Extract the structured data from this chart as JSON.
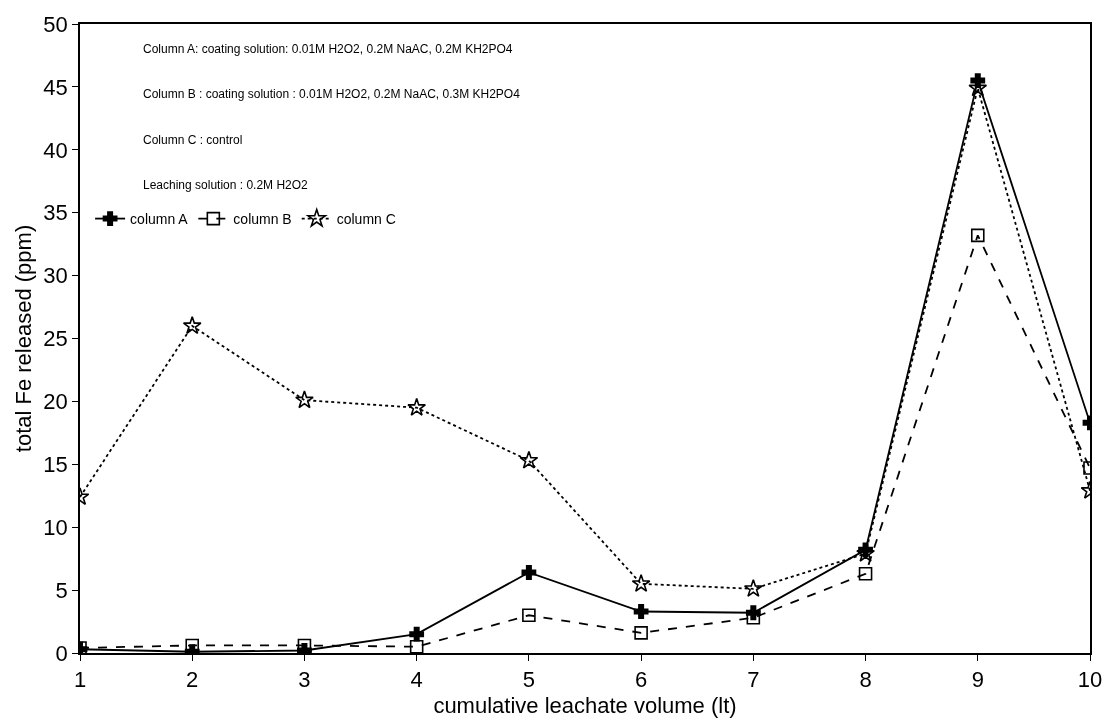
{
  "chart_data": {
    "type": "line",
    "xlabel": "cumulative leachate volume (lt)",
    "ylabel": "total Fe released (ppm)",
    "x": [
      1,
      2,
      3,
      4,
      5,
      6,
      7,
      8,
      9,
      10
    ],
    "xlim": [
      1,
      10
    ],
    "xticks": [
      1,
      2,
      3,
      4,
      5,
      6,
      7,
      8,
      9,
      10
    ],
    "ylim": [
      0,
      50
    ],
    "yticks": [
      0,
      5,
      10,
      15,
      20,
      25,
      30,
      35,
      40,
      45,
      50
    ],
    "legend": "top left",
    "annotations": [
      "Column A: coating solution: 0.01M H2O2, 0.2M NaAC, 0.2M KH2PO4",
      "Column B : coating solution : 0.01M H2O2, 0.2M NaAC, 0.3M KH2PO4",
      "Column C : control",
      "Leaching solution : 0.2M H2O2"
    ],
    "series": [
      {
        "name": "column A",
        "color": "#000000",
        "marker": "cross",
        "line_style": "solid",
        "values": [
          0.3,
          0.1,
          0.2,
          1.5,
          6.4,
          3.3,
          3.2,
          8.2,
          45.5,
          18.3
        ]
      },
      {
        "name": "column B",
        "color": "#000000",
        "marker": "square",
        "line_style": "dashed",
        "values": [
          0.4,
          0.6,
          0.6,
          0.5,
          3.0,
          1.6,
          2.8,
          6.3,
          33.2,
          14.7
        ]
      },
      {
        "name": "column C",
        "color": "#000000",
        "marker": "star",
        "line_style": "dotted",
        "values": [
          12.4,
          26,
          20.1,
          19.5,
          15.3,
          5.5,
          5.1,
          7.9,
          44.9,
          12.9
        ]
      }
    ]
  }
}
